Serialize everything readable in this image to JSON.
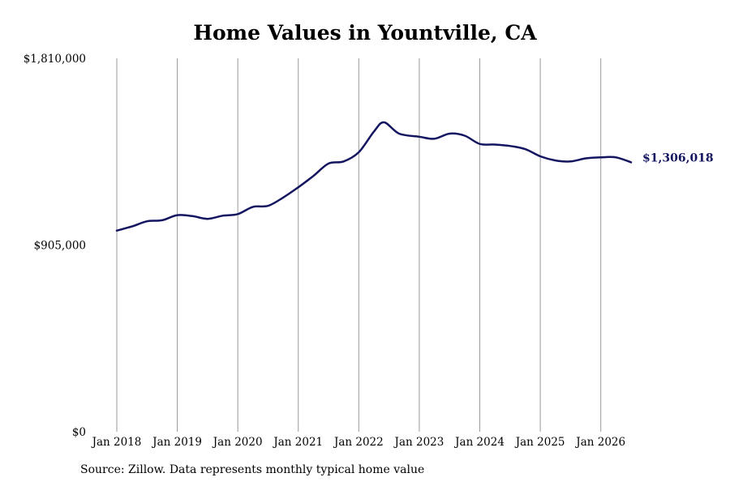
{
  "chart_data": {
    "type": "line",
    "title": "Home Values in Yountville, CA",
    "xlabel": "",
    "ylabel": "",
    "ylim": [
      0,
      1810000
    ],
    "yticks": [
      {
        "value": 0,
        "label": "$0"
      },
      {
        "value": 905000,
        "label": "$905,000"
      },
      {
        "value": 1810000,
        "label": "$1,810,000"
      }
    ],
    "xlim": [
      "2018-01",
      "2026-07"
    ],
    "xticks": [
      {
        "date": "2018-01",
        "label": "Jan 2018"
      },
      {
        "date": "2019-01",
        "label": "Jan 2019"
      },
      {
        "date": "2020-01",
        "label": "Jan 2020"
      },
      {
        "date": "2021-01",
        "label": "Jan 2021"
      },
      {
        "date": "2022-01",
        "label": "Jan 2022"
      },
      {
        "date": "2023-01",
        "label": "Jan 2023"
      },
      {
        "date": "2024-01",
        "label": "Jan 2024"
      },
      {
        "date": "2025-01",
        "label": "Jan 2025"
      },
      {
        "date": "2026-01",
        "label": "Jan 2026"
      }
    ],
    "grid": {
      "vertical": true,
      "horizontal": false
    },
    "line_color": "#141560",
    "x": [
      "2018-01",
      "2018-04",
      "2018-07",
      "2018-10",
      "2019-01",
      "2019-04",
      "2019-07",
      "2019-10",
      "2020-01",
      "2020-04",
      "2020-07",
      "2020-10",
      "2021-01",
      "2021-04",
      "2021-07",
      "2021-10",
      "2022-01",
      "2022-04",
      "2022-06",
      "2022-09",
      "2023-01",
      "2023-04",
      "2023-07",
      "2023-10",
      "2024-01",
      "2024-04",
      "2024-07",
      "2024-10",
      "2025-01",
      "2025-04",
      "2025-07",
      "2025-10",
      "2026-01",
      "2026-04",
      "2026-07"
    ],
    "values": [
      975000,
      995000,
      1020000,
      1025000,
      1050000,
      1045000,
      1032000,
      1047000,
      1055000,
      1090000,
      1095000,
      1135000,
      1185000,
      1240000,
      1300000,
      1310000,
      1355000,
      1455000,
      1500000,
      1445000,
      1430000,
      1420000,
      1445000,
      1435000,
      1395000,
      1392000,
      1385000,
      1370000,
      1335000,
      1315000,
      1310000,
      1325000,
      1330000,
      1330000,
      1306018
    ],
    "end_label": "$1,306,018"
  },
  "source": "Source: Zillow. Data represents monthly typical home value"
}
